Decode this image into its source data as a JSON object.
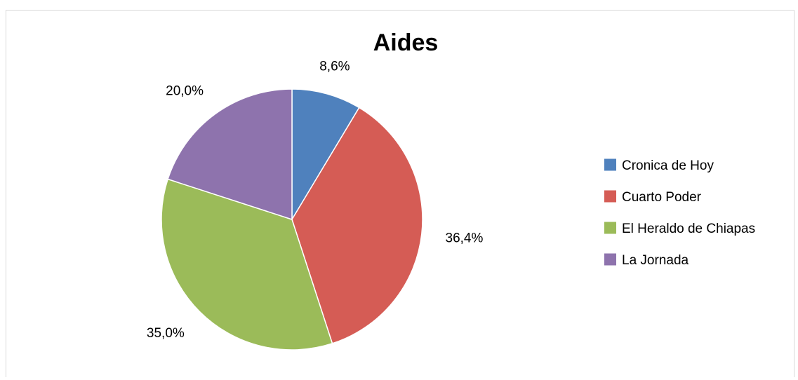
{
  "chart_data": {
    "type": "pie",
    "title": "Aides",
    "start_angle_deg": 0,
    "direction": "clockwise",
    "legend_position": "right",
    "slices": [
      {
        "label": "Cronica de Hoy",
        "value": 8.6,
        "display": "8,6%",
        "color": "#4f81bd"
      },
      {
        "label": "Cuarto Poder",
        "value": 36.4,
        "display": "36,4%",
        "color": "#d55c55"
      },
      {
        "label": "El Heraldo de Chiapas",
        "value": 35.0,
        "display": "35,0%",
        "color": "#9bbb59"
      },
      {
        "label": "La Jornada",
        "value": 20.0,
        "display": "20,0%",
        "color": "#8e73ad"
      }
    ]
  }
}
